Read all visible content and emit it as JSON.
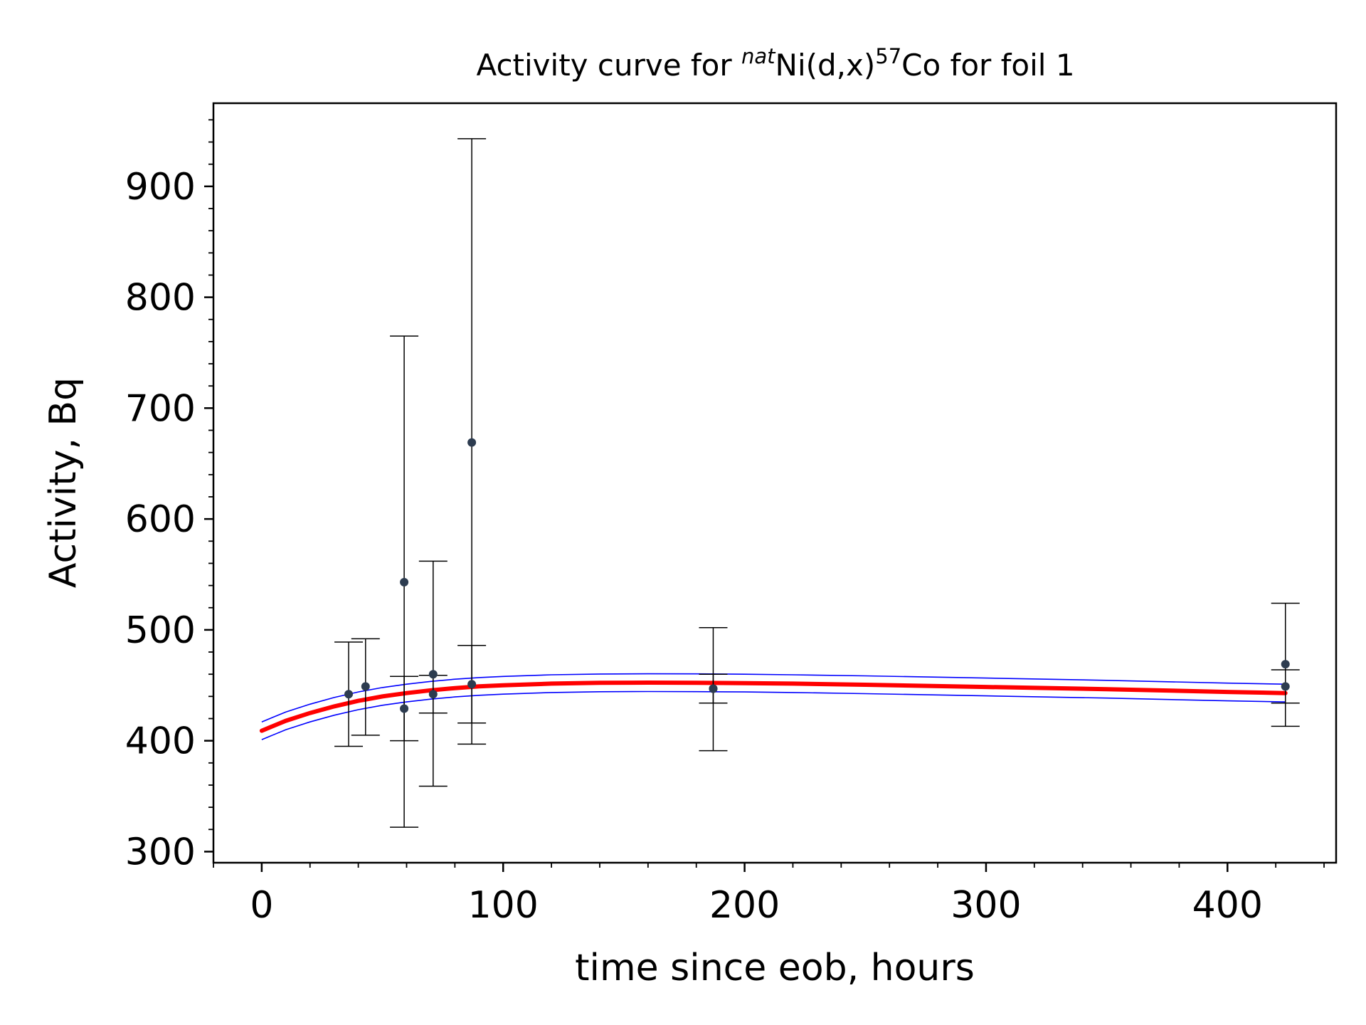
{
  "chart_data": {
    "type": "scatter",
    "title_prefix": "Activity curve for ",
    "title_sup1": "nat",
    "title_mid": "Ni(d,x)",
    "title_sup2": "57",
    "title_suffix": "Co for foil 1",
    "xlabel": "time since eob, hours",
    "ylabel": "Activity, Bq",
    "xlim": [
      -20,
      445
    ],
    "ylim": [
      290,
      975
    ],
    "xticks": [
      0,
      100,
      200,
      300,
      400
    ],
    "yticks": [
      300,
      400,
      500,
      600,
      700,
      800,
      900
    ],
    "grid": false,
    "legend": "none",
    "points": [
      {
        "x": 36,
        "y": 442,
        "ylow": 395,
        "yhigh": 489
      },
      {
        "x": 43,
        "y": 449,
        "ylow": 405,
        "yhigh": 492
      },
      {
        "x": 59,
        "y": 543,
        "ylow": 322,
        "yhigh": 765
      },
      {
        "x": 59,
        "y": 429,
        "ylow": 400,
        "yhigh": 458
      },
      {
        "x": 71,
        "y": 460,
        "ylow": 359,
        "yhigh": 562
      },
      {
        "x": 71,
        "y": 442,
        "ylow": 425,
        "yhigh": 459
      },
      {
        "x": 87,
        "y": 669,
        "ylow": 397,
        "yhigh": 943
      },
      {
        "x": 87,
        "y": 451,
        "ylow": 416,
        "yhigh": 486
      },
      {
        "x": 187,
        "y": 447,
        "ylow": 391,
        "yhigh": 502
      },
      {
        "x": 187,
        "y": 447,
        "ylow": 434,
        "yhigh": 460
      },
      {
        "x": 424,
        "y": 469,
        "ylow": 413,
        "yhigh": 524
      },
      {
        "x": 424,
        "y": 449,
        "ylow": 434,
        "yhigh": 464
      }
    ],
    "fit_curve": {
      "x": [
        0,
        10,
        20,
        30,
        40,
        50,
        60,
        70,
        80,
        90,
        100,
        120,
        140,
        160,
        180,
        200,
        220,
        250,
        300,
        350,
        400,
        424
      ],
      "y": [
        409,
        418,
        425,
        431,
        436,
        440,
        443,
        445.5,
        447.5,
        449,
        450,
        451.5,
        452.2,
        452.4,
        452.3,
        452,
        451.5,
        450.5,
        448.5,
        446.5,
        444,
        443
      ]
    },
    "band_width": 8,
    "colors": {
      "points": "#2d3c50",
      "errorbars": "#000000",
      "fit": "#ff0000",
      "band": "#0000ff"
    }
  }
}
